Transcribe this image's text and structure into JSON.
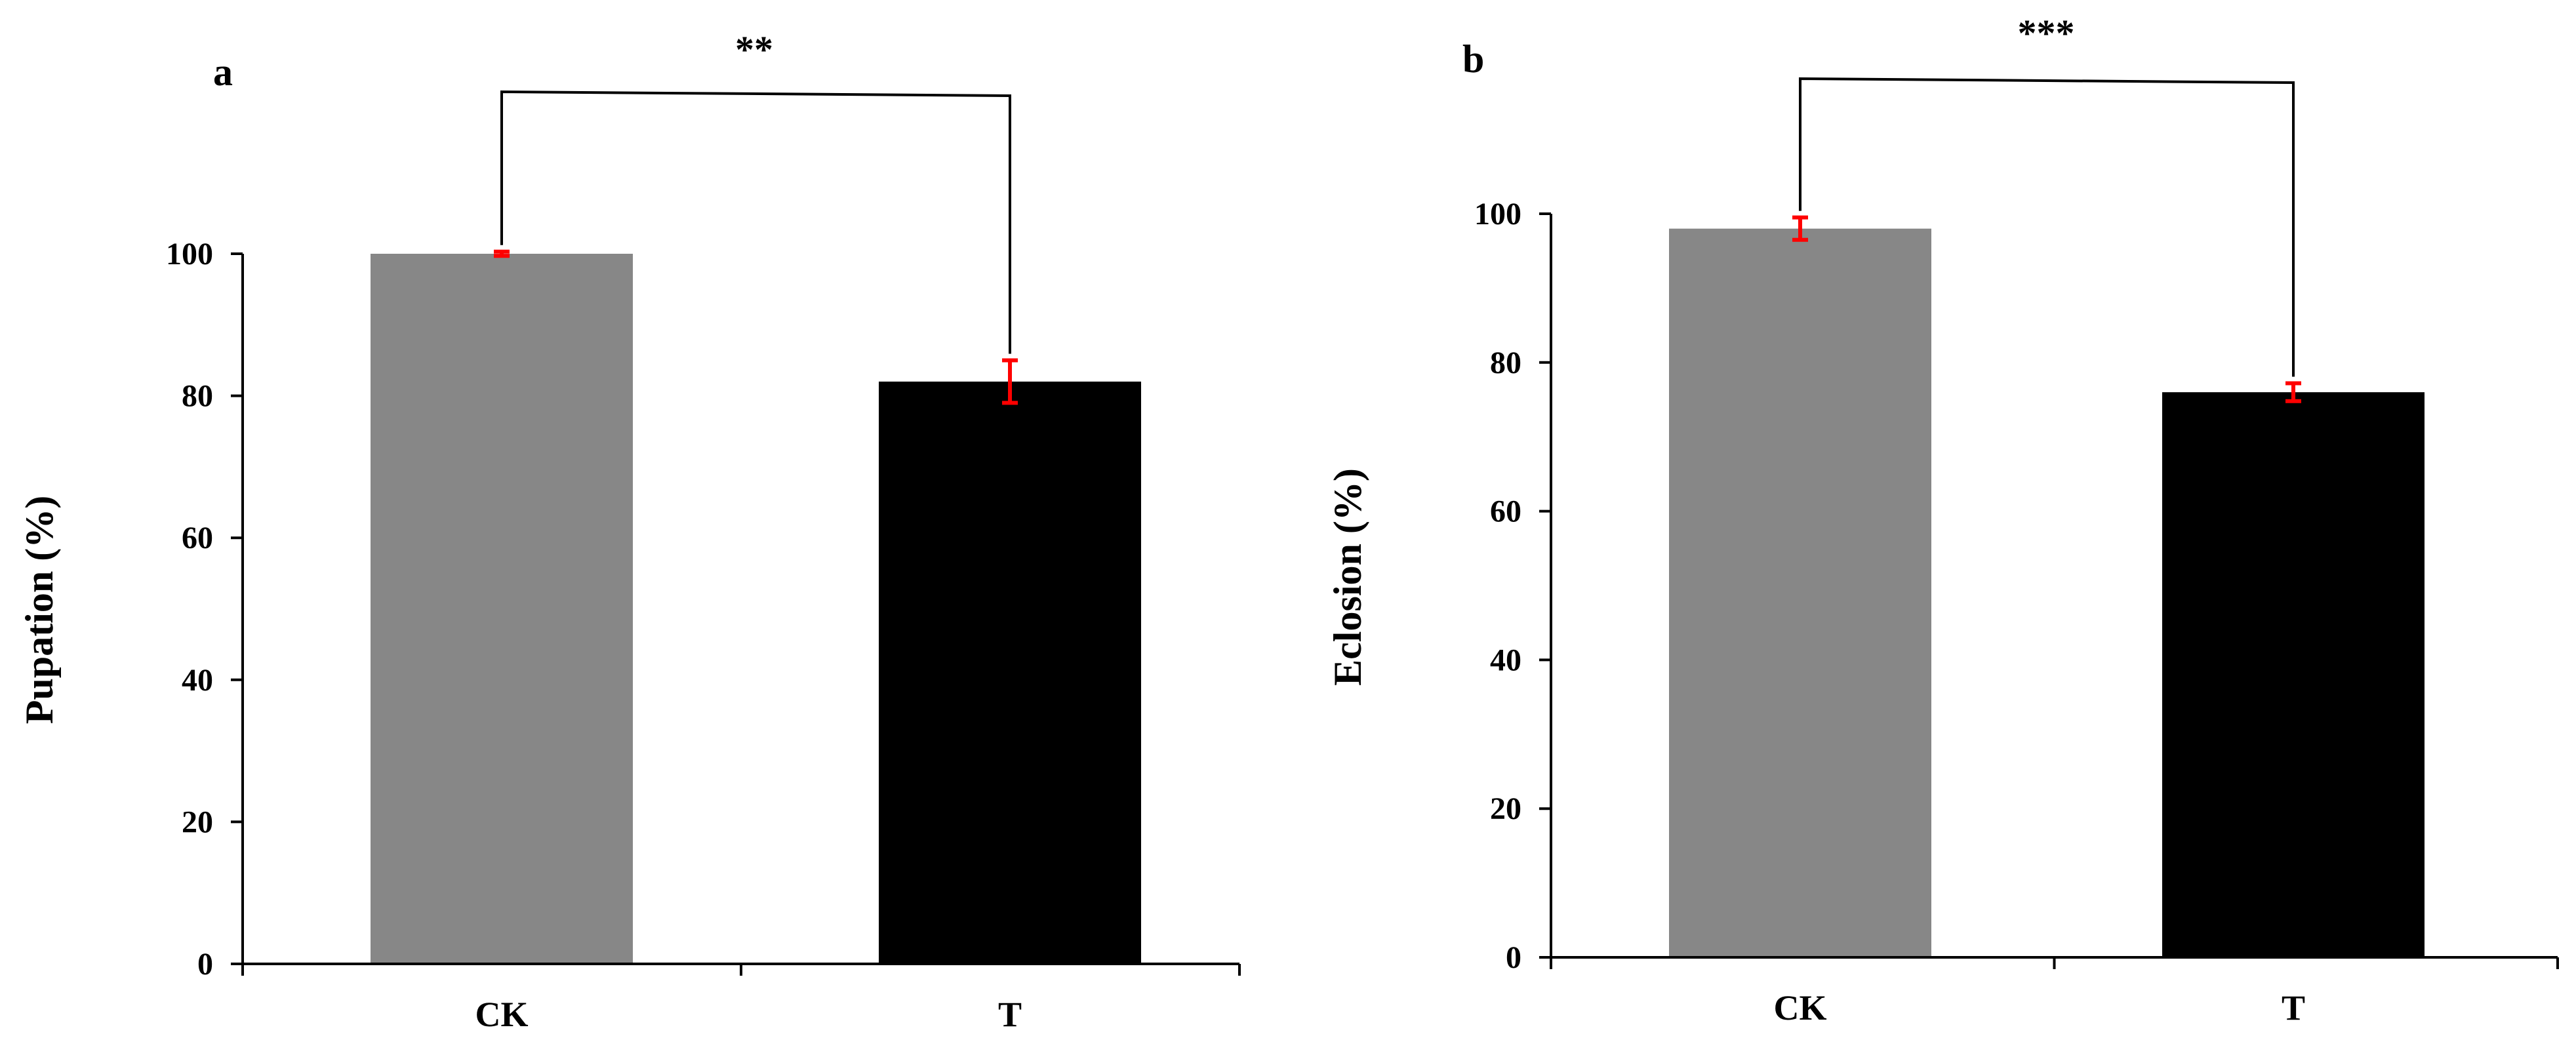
{
  "chart_data": [
    {
      "panel": "a",
      "type": "bar",
      "categories": [
        "CK",
        "T"
      ],
      "values": [
        100,
        82
      ],
      "errors": [
        0.3,
        3
      ],
      "ylabel": "Pupation (%)",
      "xlabel": "",
      "ylim": [
        0,
        100
      ],
      "yticks": [
        0,
        20,
        40,
        60,
        80,
        100
      ],
      "significance": "**",
      "bar_colors": [
        "#878787",
        "#000000"
      ],
      "error_color": "#ff0000"
    },
    {
      "panel": "b",
      "type": "bar",
      "categories": [
        "CK",
        "T"
      ],
      "values": [
        98,
        76
      ],
      "errors": [
        1.5,
        1.2
      ],
      "ylabel": "Eclosion (%)",
      "xlabel": "",
      "ylim": [
        0,
        100
      ],
      "yticks": [
        0,
        20,
        40,
        60,
        80,
        100
      ],
      "significance": "***",
      "bar_colors": [
        "#878787",
        "#000000"
      ],
      "error_color": "#ff0000"
    }
  ]
}
